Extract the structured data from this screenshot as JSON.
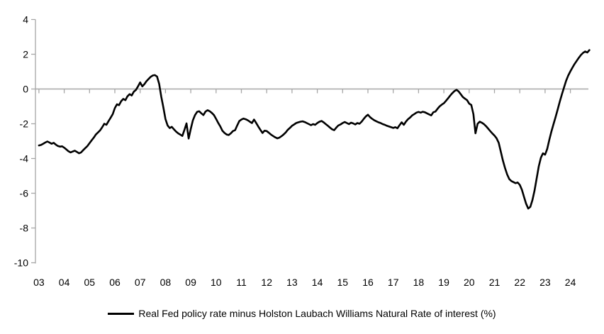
{
  "chart_data": {
    "type": "line",
    "title": "",
    "xlabel": "",
    "ylabel": "",
    "legend_position": "bottom-center",
    "grid": "zero-line-only",
    "y_axis": {
      "min": -10,
      "max": 4,
      "ticks": [
        4,
        2,
        0,
        -2,
        -4,
        -6,
        -8,
        -10
      ],
      "tick_labels": [
        "4",
        "2",
        "0",
        "-2",
        "-4",
        "-6",
        "-8",
        "-10"
      ]
    },
    "x_axis": {
      "start_year": 2003,
      "end_year_fraction": 2024.75,
      "tick_labels": [
        "03",
        "04",
        "05",
        "06",
        "07",
        "08",
        "09",
        "10",
        "11",
        "12",
        "13",
        "14",
        "15",
        "16",
        "17",
        "18",
        "19",
        "20",
        "21",
        "22",
        "23",
        "24"
      ]
    },
    "colors": {
      "line": "#000000",
      "axis": "#a6a6a6",
      "text": "#000000",
      "background": "#ffffff"
    },
    "series": [
      {
        "name": "Real Fed policy rate minus Holston Laubach Williams Natural Rate of interest (%)",
        "color": "#000000",
        "start": "2003-01",
        "frequency": "monthly",
        "values": [
          -3.25,
          -3.22,
          -3.15,
          -3.08,
          -3.02,
          -3.08,
          -3.15,
          -3.1,
          -3.2,
          -3.28,
          -3.32,
          -3.3,
          -3.38,
          -3.48,
          -3.58,
          -3.65,
          -3.6,
          -3.55,
          -3.62,
          -3.7,
          -3.65,
          -3.52,
          -3.4,
          -3.28,
          -3.12,
          -2.95,
          -2.8,
          -2.62,
          -2.5,
          -2.38,
          -2.2,
          -2.0,
          -2.06,
          -1.85,
          -1.65,
          -1.45,
          -1.1,
          -0.88,
          -0.93,
          -0.7,
          -0.57,
          -0.64,
          -0.42,
          -0.3,
          -0.37,
          -0.15,
          -0.05,
          0.15,
          0.38,
          0.15,
          0.28,
          0.45,
          0.58,
          0.7,
          0.78,
          0.8,
          0.72,
          0.3,
          -0.45,
          -1.05,
          -1.73,
          -2.1,
          -2.25,
          -2.18,
          -2.32,
          -2.45,
          -2.55,
          -2.62,
          -2.7,
          -2.35,
          -1.98,
          -2.85,
          -2.3,
          -1.8,
          -1.5,
          -1.32,
          -1.28,
          -1.4,
          -1.5,
          -1.3,
          -1.22,
          -1.28,
          -1.38,
          -1.5,
          -1.72,
          -1.95,
          -2.16,
          -2.4,
          -2.53,
          -2.62,
          -2.65,
          -2.55,
          -2.42,
          -2.37,
          -2.1,
          -1.85,
          -1.76,
          -1.7,
          -1.74,
          -1.8,
          -1.88,
          -1.96,
          -1.76,
          -1.95,
          -2.16,
          -2.35,
          -2.53,
          -2.4,
          -2.42,
          -2.52,
          -2.62,
          -2.7,
          -2.78,
          -2.84,
          -2.8,
          -2.72,
          -2.62,
          -2.5,
          -2.35,
          -2.24,
          -2.12,
          -2.04,
          -1.96,
          -1.92,
          -1.88,
          -1.86,
          -1.9,
          -1.96,
          -2.02,
          -2.08,
          -2.02,
          -2.06,
          -1.96,
          -1.88,
          -1.84,
          -1.92,
          -2.02,
          -2.12,
          -2.22,
          -2.32,
          -2.37,
          -2.22,
          -2.1,
          -2.04,
          -1.96,
          -1.9,
          -1.96,
          -2.02,
          -1.94,
          -1.98,
          -2.04,
          -1.96,
          -2.0,
          -1.88,
          -1.72,
          -1.58,
          -1.48,
          -1.62,
          -1.72,
          -1.8,
          -1.86,
          -1.92,
          -1.96,
          -2.02,
          -2.06,
          -2.12,
          -2.16,
          -2.2,
          -2.24,
          -2.2,
          -2.26,
          -2.08,
          -1.92,
          -2.06,
          -1.88,
          -1.74,
          -1.64,
          -1.52,
          -1.44,
          -1.36,
          -1.32,
          -1.36,
          -1.31,
          -1.34,
          -1.4,
          -1.46,
          -1.52,
          -1.34,
          -1.3,
          -1.14,
          -1.0,
          -0.9,
          -0.82,
          -0.68,
          -0.54,
          -0.38,
          -0.24,
          -0.12,
          -0.05,
          -0.14,
          -0.3,
          -0.46,
          -0.56,
          -0.64,
          -0.84,
          -0.92,
          -1.45,
          -2.55,
          -2.0,
          -1.88,
          -1.94,
          -2.02,
          -2.14,
          -2.28,
          -2.42,
          -2.56,
          -2.68,
          -2.84,
          -3.1,
          -3.6,
          -4.12,
          -4.55,
          -4.92,
          -5.18,
          -5.3,
          -5.36,
          -5.42,
          -5.38,
          -5.52,
          -5.8,
          -6.2,
          -6.6,
          -6.88,
          -6.78,
          -6.4,
          -5.85,
          -5.15,
          -4.45,
          -3.95,
          -3.7,
          -3.78,
          -3.45,
          -2.92,
          -2.45,
          -2.02,
          -1.6,
          -1.16,
          -0.72,
          -0.3,
          0.1,
          0.48,
          0.78,
          1.02,
          1.24,
          1.44,
          1.62,
          1.8,
          1.96,
          2.08,
          2.16,
          2.1,
          2.24
        ]
      }
    ]
  }
}
